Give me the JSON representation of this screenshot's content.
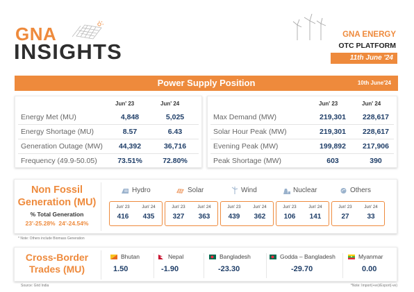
{
  "header": {
    "gna": "GNA",
    "insights": "INSIGHTS",
    "brand": "GNA ENERGY",
    "platform": "OTC PLATFORM",
    "date": "11th June '24"
  },
  "power_supply": {
    "title": "Power Supply Position",
    "date": "10th June'24",
    "col_a": "Jun' 23",
    "col_b": "Jun' 24",
    "left_rows": [
      {
        "label": "Energy Met (MU)",
        "a": "4,848",
        "b": "5,025"
      },
      {
        "label": "Energy Shortage (MU)",
        "a": "8.57",
        "b": "6.43"
      },
      {
        "label": "Generation Outage (MW)",
        "a": "44,392",
        "b": "36,716"
      },
      {
        "label": "Frequency (49.9-50.05)",
        "a": "73.51%",
        "b": "72.80%"
      }
    ],
    "right_rows": [
      {
        "label": "Max Demand (MW)",
        "a": "219,301",
        "b": "228,617"
      },
      {
        "label": "Solar Hour Peak (MW)",
        "a": "219,301",
        "b": "228,617"
      },
      {
        "label": "Evening Peak (MW)",
        "a": "199,892",
        "b": "217,906"
      },
      {
        "label": "Peak Shortage (MW)",
        "a": "603",
        "b": "390"
      }
    ]
  },
  "non_fossil": {
    "title_line1": "Non Fossil",
    "title_line2": "Generation (MU)",
    "subtitle": "% Total Generation",
    "pct_23": "23'-25.28%",
    "pct_24": "24'-24.54%",
    "year_a": "Jun' 23",
    "year_b": "Jun' 24",
    "sources": [
      {
        "name": "Hydro",
        "icon": "dam-icon",
        "a": "416",
        "b": "435"
      },
      {
        "name": "Solar",
        "icon": "solar-panel-icon",
        "a": "327",
        "b": "363"
      },
      {
        "name": "Wind",
        "icon": "wind-turbine-icon",
        "a": "439",
        "b": "362"
      },
      {
        "name": "Nuclear",
        "icon": "nuclear-plant-icon",
        "a": "106",
        "b": "141"
      },
      {
        "name": "Others",
        "icon": "biomass-icon",
        "a": "27",
        "b": "33"
      }
    ],
    "note": "* Note: Others include Biomass Generation"
  },
  "cross_border": {
    "title_line1": "Cross-Border",
    "title_line2": "Trades (MU)",
    "countries": [
      {
        "name": "Bhutan",
        "value": "1.50"
      },
      {
        "name": "Nepal",
        "value": "-1.90"
      },
      {
        "name": "Bangladesh",
        "value": "-23.30"
      },
      {
        "name": "Godda – Bangladesh",
        "value": "-29.70"
      },
      {
        "name": "Myanmar",
        "value": "0.00"
      }
    ]
  },
  "footer": {
    "source": "Source: Grid India",
    "note": "*Note: Import(+ve)/Export(-ve)"
  },
  "colors": {
    "accent": "#ee8a3c",
    "value": "#1f3e68"
  }
}
